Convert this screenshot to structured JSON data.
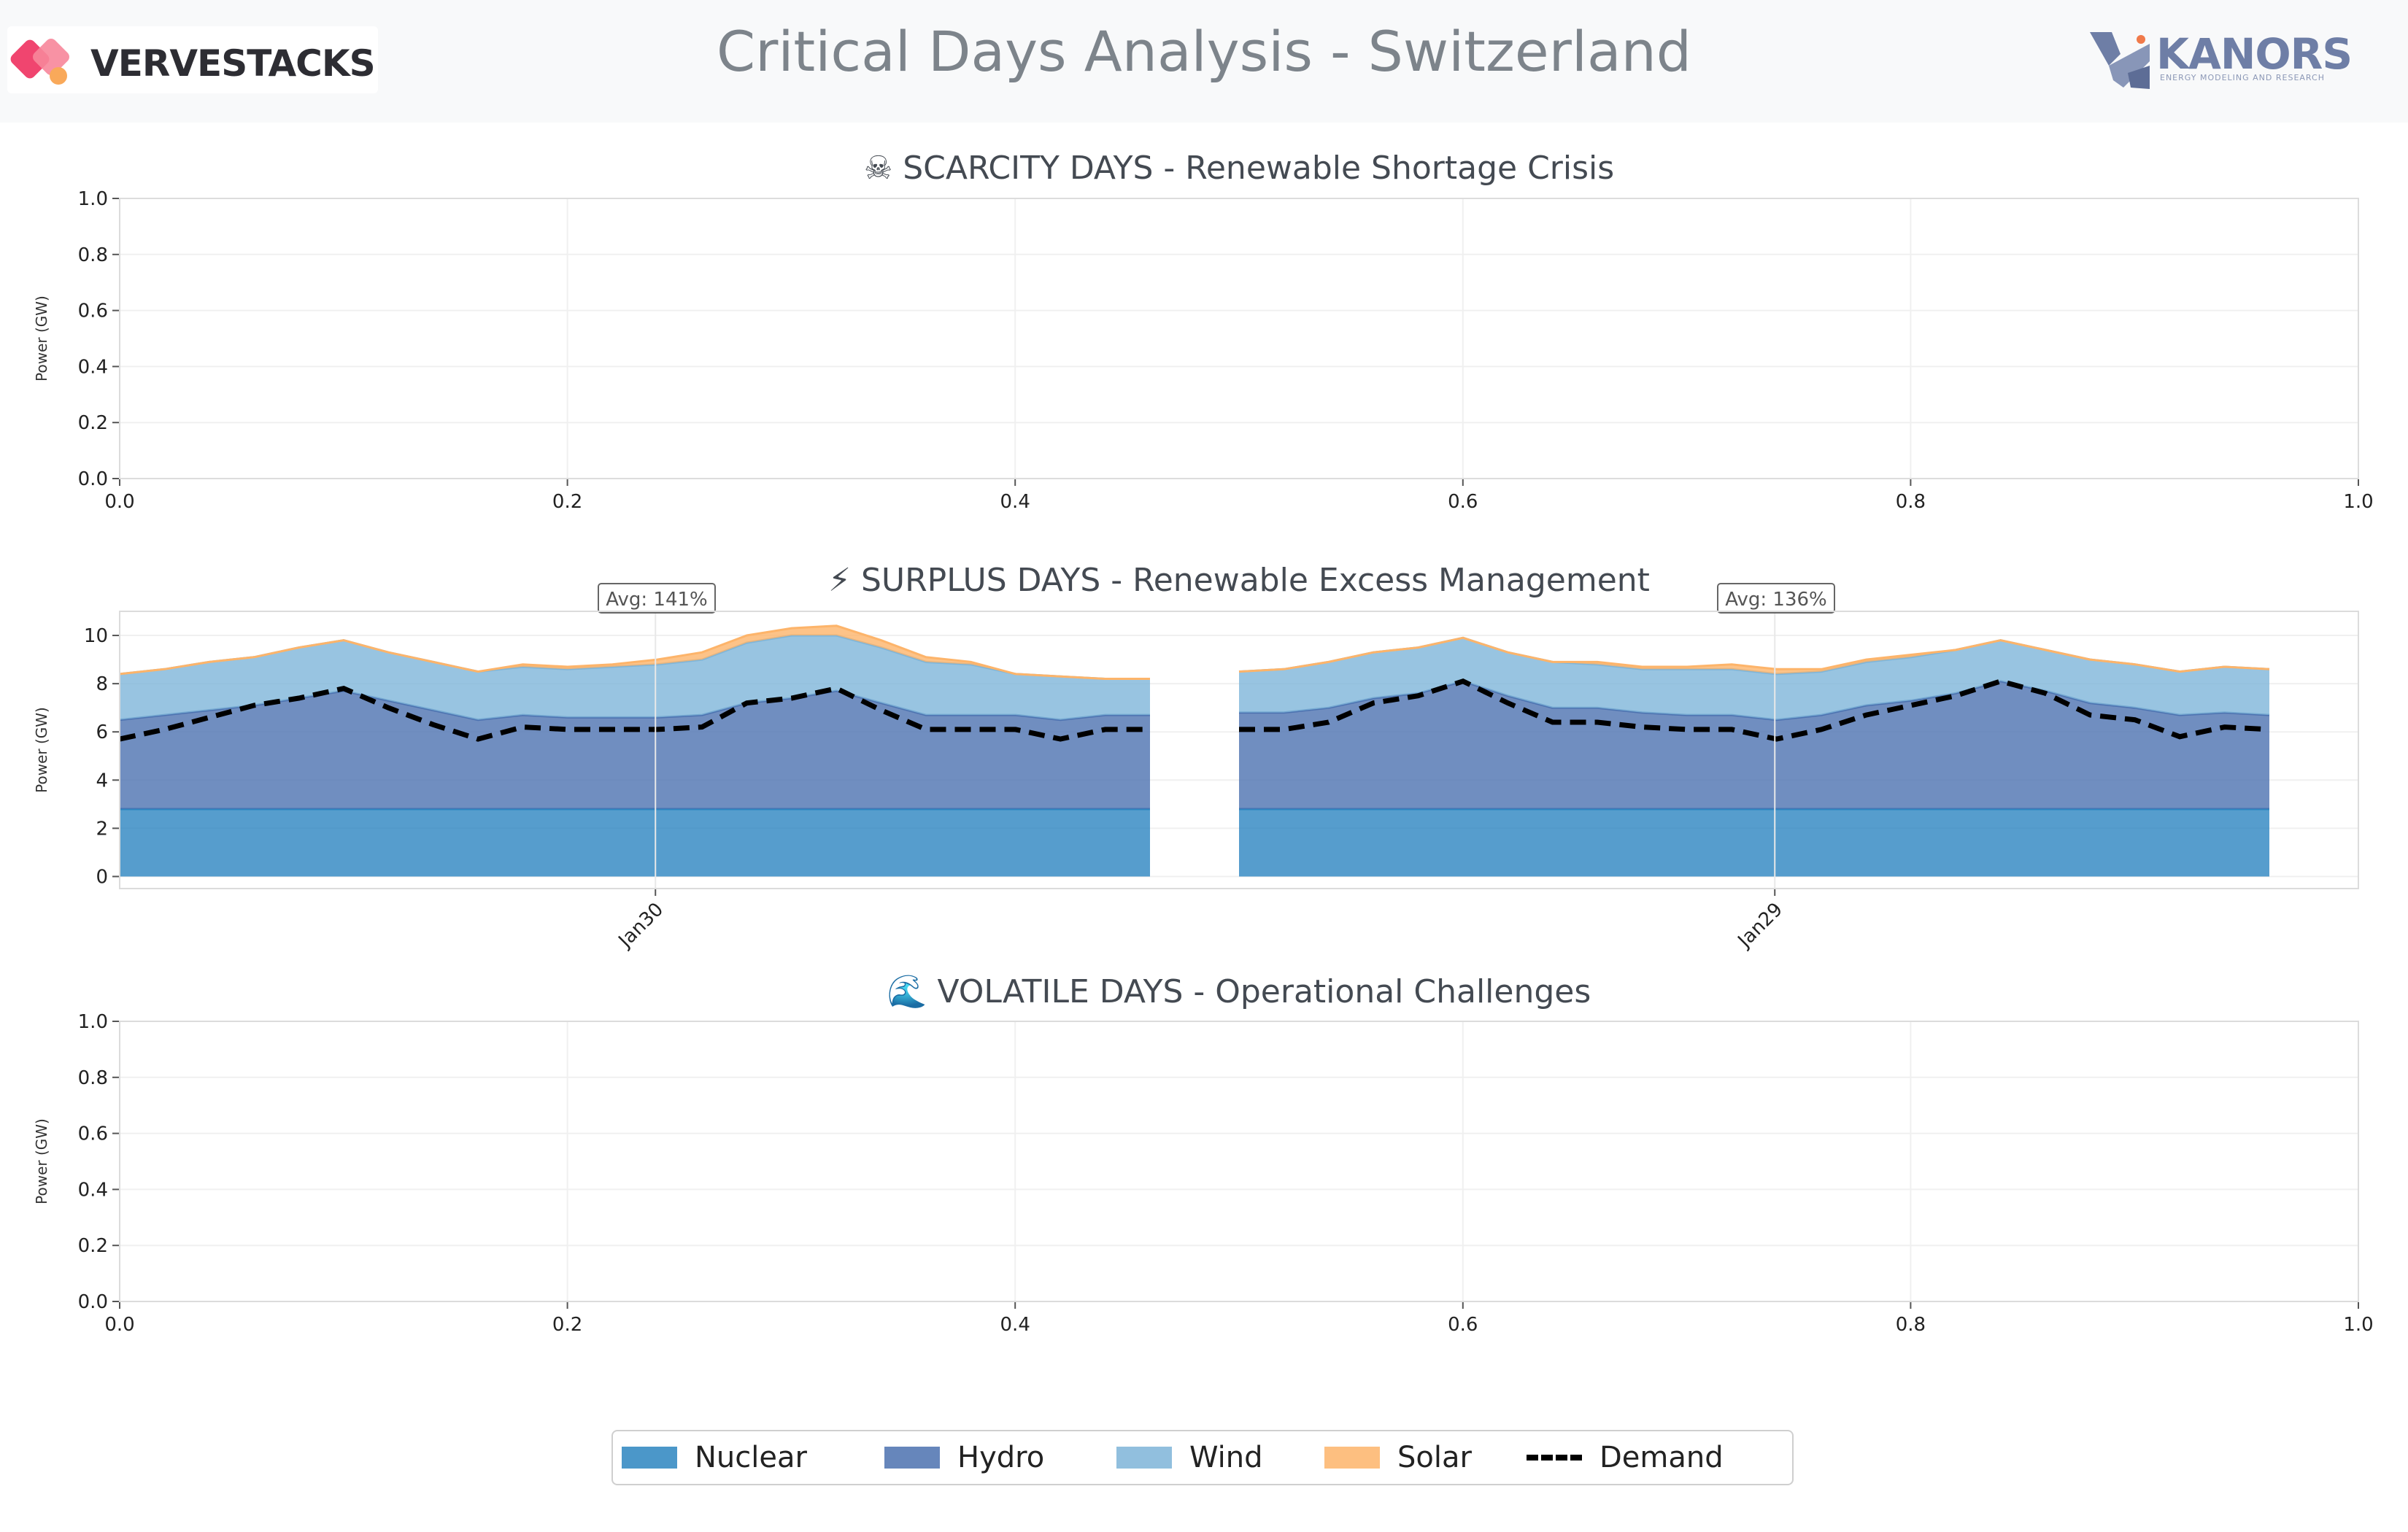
{
  "header": {
    "title": "Critical Days Analysis - Switzerland",
    "brand_left": "VERVESTACKS",
    "brand_right": "KANORS",
    "brand_right_sub": "ENERGY MODELING AND RESEARCH"
  },
  "colors": {
    "nuclear": "#2c85c0",
    "hydro": "#4c72b0",
    "wind": "#7eb5d9",
    "solar": "#fdb46a",
    "demand": "#000000"
  },
  "legend": [
    {
      "key": "nuclear",
      "label": "Nuclear",
      "kind": "area"
    },
    {
      "key": "hydro",
      "label": "Hydro",
      "kind": "area"
    },
    {
      "key": "wind",
      "label": "Wind",
      "kind": "area"
    },
    {
      "key": "solar",
      "label": "Solar",
      "kind": "area"
    },
    {
      "key": "demand",
      "label": "Demand",
      "kind": "line"
    }
  ],
  "chart_data": [
    {
      "type": "area",
      "title": "☠ SCARCITY DAYS - Renewable Shortage Crisis",
      "ylabel": "Power (GW)",
      "xlim": [
        0,
        1
      ],
      "ylim": [
        0,
        1
      ],
      "xticks": [
        "0.0",
        "0.2",
        "0.4",
        "0.6",
        "0.8",
        "1.0"
      ],
      "yticks": [
        "0.0",
        "0.2",
        "0.4",
        "0.6",
        "0.8",
        "1.0"
      ],
      "grid": true,
      "series": []
    },
    {
      "type": "area",
      "title": "⚡ SURPLUS DAYS - Renewable Excess Management",
      "ylabel": "Power (GW)",
      "yticks": [
        "0",
        "2",
        "4",
        "6",
        "8",
        "10"
      ],
      "ylim": [
        -0.5,
        11
      ],
      "grid": true,
      "stacked": true,
      "days": [
        {
          "label": "Jan30",
          "annotation": "Avg: 141%",
          "nuclear": [
            2.8,
            2.8,
            2.8,
            2.8,
            2.8,
            2.8,
            2.8,
            2.8,
            2.8,
            2.8,
            2.8,
            2.8,
            2.8,
            2.8,
            2.8,
            2.8,
            2.8,
            2.8,
            2.8,
            2.8,
            2.8,
            2.8,
            2.8,
            2.8
          ],
          "hydro": [
            3.7,
            3.9,
            4.1,
            4.3,
            4.6,
            4.9,
            4.5,
            4.1,
            3.7,
            3.9,
            3.8,
            3.8,
            3.8,
            3.9,
            4.4,
            4.6,
            4.9,
            4.4,
            3.9,
            3.9,
            3.9,
            3.7,
            3.9,
            3.9
          ],
          "wind": [
            1.9,
            1.9,
            2.0,
            2.0,
            2.1,
            2.1,
            2.0,
            2.0,
            2.0,
            2.0,
            2.0,
            2.1,
            2.2,
            2.3,
            2.5,
            2.6,
            2.3,
            2.3,
            2.2,
            2.1,
            1.7,
            1.8,
            1.5,
            1.5
          ],
          "solar": [
            0.0,
            0.0,
            0.0,
            0.0,
            0.0,
            0.0,
            0.0,
            0.0,
            0.0,
            0.1,
            0.1,
            0.1,
            0.2,
            0.3,
            0.3,
            0.3,
            0.4,
            0.3,
            0.2,
            0.1,
            0.0,
            0.0,
            0.0,
            0.0
          ],
          "demand": [
            5.7,
            6.1,
            6.6,
            7.1,
            7.4,
            7.8,
            7.0,
            6.3,
            5.7,
            6.2,
            6.1,
            6.1,
            6.1,
            6.2,
            7.2,
            7.4,
            7.8,
            6.9,
            6.1,
            6.1,
            6.1,
            5.7,
            6.1,
            6.1
          ]
        },
        {
          "label": "Jan29",
          "annotation": "Avg: 136%",
          "nuclear": [
            2.8,
            2.8,
            2.8,
            2.8,
            2.8,
            2.8,
            2.8,
            2.8,
            2.8,
            2.8,
            2.8,
            2.8,
            2.8,
            2.8,
            2.8,
            2.8,
            2.8,
            2.8,
            2.8,
            2.8,
            2.8,
            2.8,
            2.8,
            2.8
          ],
          "hydro": [
            4.0,
            4.0,
            4.2,
            4.6,
            4.8,
            5.3,
            4.7,
            4.2,
            4.2,
            4.0,
            3.9,
            3.9,
            3.7,
            3.9,
            4.3,
            4.5,
            4.8,
            5.3,
            4.9,
            4.4,
            4.2,
            3.9,
            4.0,
            3.9
          ],
          "wind": [
            1.7,
            1.8,
            1.9,
            1.9,
            1.9,
            1.8,
            1.8,
            1.9,
            1.8,
            1.8,
            1.9,
            1.9,
            1.9,
            1.8,
            1.8,
            1.8,
            1.8,
            1.7,
            1.7,
            1.8,
            1.8,
            1.8,
            1.9,
            1.9
          ],
          "solar": [
            0.0,
            0.0,
            0.0,
            0.0,
            0.0,
            0.0,
            0.0,
            0.0,
            0.1,
            0.1,
            0.1,
            0.2,
            0.2,
            0.1,
            0.1,
            0.1,
            0.0,
            0.0,
            0.0,
            0.0,
            0.0,
            0.0,
            0.0,
            0.0
          ],
          "demand": [
            6.1,
            6.1,
            6.4,
            7.2,
            7.5,
            8.1,
            7.2,
            6.4,
            6.4,
            6.2,
            6.1,
            6.1,
            5.7,
            6.1,
            6.7,
            7.1,
            7.5,
            8.1,
            7.6,
            6.7,
            6.5,
            5.8,
            6.2,
            6.1
          ]
        }
      ]
    },
    {
      "type": "area",
      "title": "🌊 VOLATILE DAYS - Operational Challenges",
      "ylabel": "Power (GW)",
      "xlim": [
        0,
        1
      ],
      "ylim": [
        0,
        1
      ],
      "xticks": [
        "0.0",
        "0.2",
        "0.4",
        "0.6",
        "0.8",
        "1.0"
      ],
      "yticks": [
        "0.0",
        "0.2",
        "0.4",
        "0.6",
        "0.8",
        "1.0"
      ],
      "grid": true,
      "series": []
    }
  ]
}
